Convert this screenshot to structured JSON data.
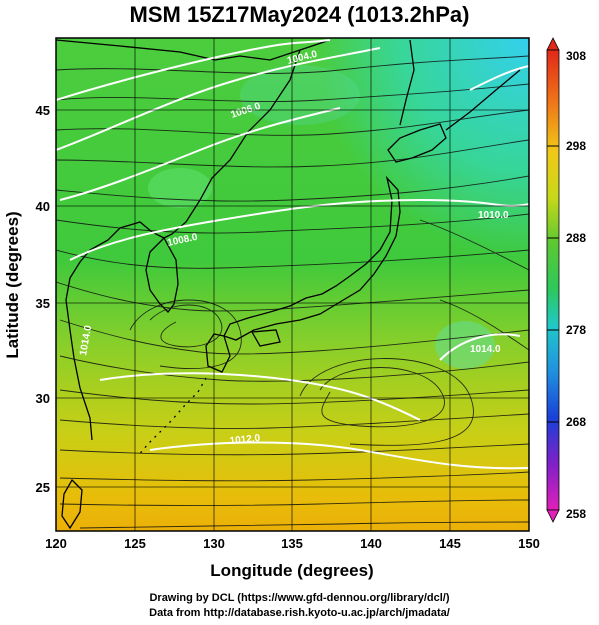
{
  "title": "MSM 15Z17May2024 (1013.2hPa)",
  "axes": {
    "xlabel": "Longitude (degrees)",
    "ylabel": "Latitude  (degrees)",
    "xticks": [
      "120",
      "125",
      "130",
      "135",
      "140",
      "145",
      "150"
    ],
    "yticks": [
      "25",
      "30",
      "35",
      "40",
      "45"
    ]
  },
  "colorbar": {
    "ticks": [
      "308",
      "298",
      "288",
      "278",
      "268",
      "258"
    ]
  },
  "contour_labels": [
    "1004.0",
    "1006.0",
    "1008.0",
    "1010.0",
    "1012.0",
    "1014.0",
    "1014.0"
  ],
  "credits": {
    "line1": "Drawing by DCL (https://www.gfd-dennou.org/library/dcl/)",
    "line2": "Data from http://database.rish.kyoto-u.ac.jp/arch/jmadata/"
  },
  "chart_data": {
    "type": "heatmap",
    "title": "MSM 15Z17May2024 (1013.2hPa)",
    "xlabel": "Longitude (degrees)",
    "ylabel": "Latitude  (degrees)",
    "xlim": [
      120,
      150
    ],
    "ylim": [
      22.5,
      47.5
    ],
    "colorbar_range": [
      258,
      308
    ],
    "colorbar_ticks": [
      258,
      268,
      278,
      288,
      298,
      308
    ],
    "isobars_hPa": [
      1004,
      1006,
      1008,
      1010,
      1012,
      1014
    ],
    "overlay": "streamlines",
    "grid": true
  },
  "colors": {
    "cold_sea": "#33ccee",
    "mid": "#33cc33",
    "warm": "#e8c000",
    "land_outline": "#000000",
    "isobar": "#ffffff"
  }
}
